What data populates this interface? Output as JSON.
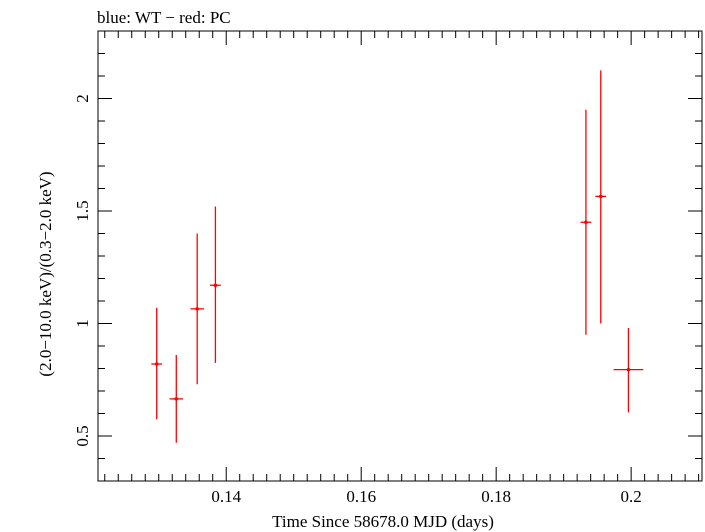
{
  "chart_data": {
    "type": "scatter",
    "title": "blue: WT − red: PC",
    "xlabel": "Time Since 58678.0 MJD (days)",
    "ylabel": "(2.0−10.0 keV)/(0.3−2.0 keV)",
    "xlim": [
      0.121,
      0.2105
    ],
    "ylim": [
      0.3,
      2.3
    ],
    "xticks": [
      0.14,
      0.16,
      0.18,
      0.2
    ],
    "xtick_labels": [
      "0.14",
      "0.16",
      "0.18",
      "0.2"
    ],
    "yticks": [
      0.5,
      1,
      1.5,
      2
    ],
    "ytick_labels": [
      "0.5",
      "1",
      "1.5",
      "2"
    ],
    "grid": false,
    "series": [
      {
        "color": "#ff0000",
        "points": [
          {
            "x": 0.1297,
            "xerr": 0.0008,
            "y": 0.82,
            "ylow": 0.575,
            "yhigh": 1.07
          },
          {
            "x": 0.1326,
            "xerr": 0.001,
            "y": 0.665,
            "ylow": 0.47,
            "yhigh": 0.86
          },
          {
            "x": 0.1357,
            "xerr": 0.001,
            "y": 1.065,
            "ylow": 0.73,
            "yhigh": 1.4
          },
          {
            "x": 0.1384,
            "xerr": 0.0008,
            "y": 1.17,
            "ylow": 0.825,
            "yhigh": 1.52
          },
          {
            "x": 0.1933,
            "xerr": 0.0008,
            "y": 1.45,
            "ylow": 0.95,
            "yhigh": 1.95
          },
          {
            "x": 0.1955,
            "xerr": 0.0008,
            "y": 1.565,
            "ylow": 1.0,
            "yhigh": 2.125
          },
          {
            "x": 0.1996,
            "xerr": 0.0022,
            "y": 0.795,
            "ylow": 0.605,
            "yhigh": 0.98
          }
        ]
      }
    ]
  }
}
